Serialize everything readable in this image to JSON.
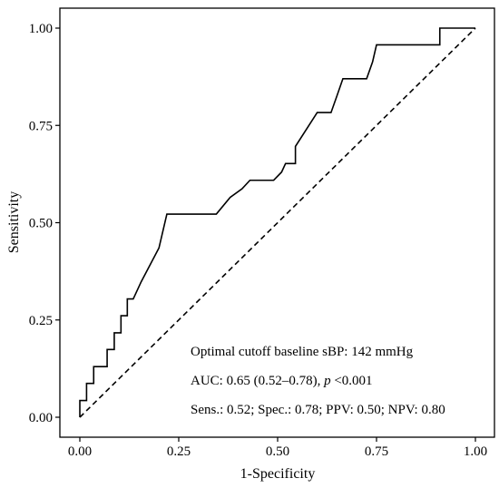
{
  "chart_data": {
    "type": "line",
    "xlabel": "1-Specificity",
    "ylabel": "Sensitivity",
    "xlim": [
      0,
      1
    ],
    "ylim": [
      0,
      1
    ],
    "x_ticks": [
      "0.00",
      "0.25",
      "0.50",
      "0.75",
      "1.00"
    ],
    "y_ticks": [
      "0.00",
      "0.25",
      "0.50",
      "0.75",
      "1.00"
    ],
    "grid": false,
    "legend": "none",
    "series": [
      {
        "style": "solid",
        "color": "#000000",
        "x": [
          0.0,
          0.0,
          0.017,
          0.017,
          0.035,
          0.035,
          0.052,
          0.052,
          0.069,
          0.069,
          0.087,
          0.087,
          0.104,
          0.104,
          0.12,
          0.12,
          0.135,
          0.135,
          0.155,
          0.2,
          0.22,
          0.345,
          0.38,
          0.41,
          0.43,
          0.49,
          0.51,
          0.52,
          0.535,
          0.535,
          0.545,
          0.545,
          0.6,
          0.635,
          0.635,
          0.65,
          0.65,
          0.665,
          0.665,
          0.725,
          0.74,
          0.74,
          0.75,
          0.91,
          0.91,
          0.92,
          1.0
        ],
        "y": [
          0.0,
          0.043,
          0.043,
          0.087,
          0.087,
          0.13,
          0.13,
          0.13,
          0.13,
          0.174,
          0.174,
          0.217,
          0.217,
          0.261,
          0.261,
          0.304,
          0.304,
          0.304,
          0.348,
          0.435,
          0.522,
          0.522,
          0.565,
          0.587,
          0.609,
          0.609,
          0.63,
          0.652,
          0.652,
          0.652,
          0.652,
          0.696,
          0.783,
          0.783,
          0.783,
          0.826,
          0.826,
          0.87,
          0.87,
          0.87,
          0.913,
          0.913,
          0.957,
          0.957,
          1.0,
          1.0,
          1.0
        ]
      },
      {
        "style": "dashed",
        "color": "#000000",
        "x": [
          0,
          1
        ],
        "y": [
          0,
          1
        ]
      }
    ],
    "annotations": [
      {
        "text": "Optimal cutoff baseline sBP: 142 mmHg"
      },
      {
        "text_before": "AUC: 0.65 (0.52–0.78), ",
        "text_italic": "p",
        "text_after": " <0.001"
      },
      {
        "text": "Sens.: 0.52; Spec.: 0.78; PPV: 0.50; NPV: 0.80"
      }
    ]
  }
}
